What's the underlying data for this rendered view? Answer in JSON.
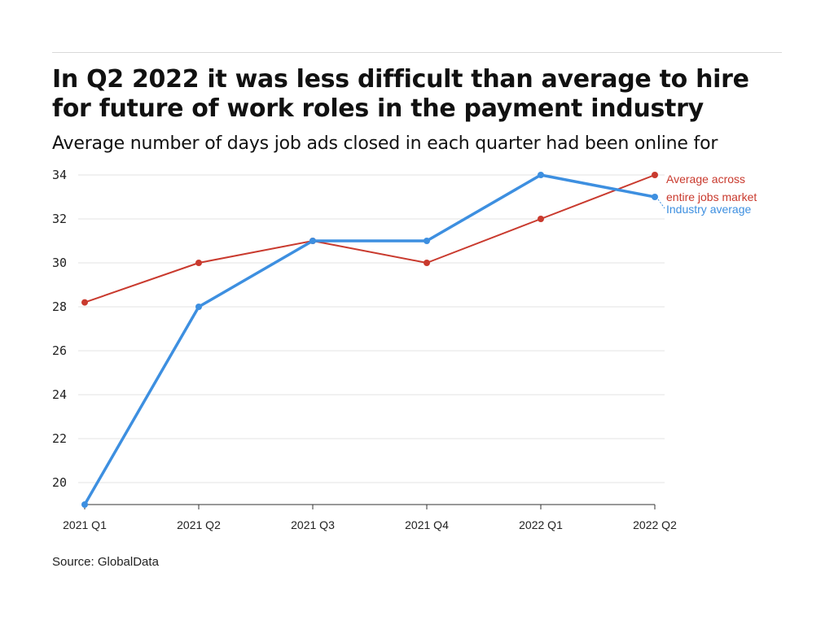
{
  "title": "In Q2 2022 it was less difficult than average to hire for future of work roles in the payment industry",
  "subtitle": "Average number of days job ads closed in each quarter had been online for",
  "source": "Source: GlobalData",
  "colors": {
    "market": "#c93a2e",
    "industry": "#3d8fe0",
    "grid": "#e3e3e3",
    "axis": "#333333"
  },
  "chart_data": {
    "type": "line",
    "categories": [
      "2021 Q1",
      "2021 Q2",
      "2021 Q3",
      "2021 Q4",
      "2022 Q1",
      "2022 Q2"
    ],
    "ylim": [
      19,
      34
    ],
    "yticks": [
      20,
      22,
      24,
      26,
      28,
      30,
      32,
      34
    ],
    "grid": true,
    "series": [
      {
        "name": "Average across entire jobs market",
        "label_lines": [
          "Average across",
          "entire jobs market"
        ],
        "color": "#c93a2e",
        "values": [
          28.2,
          30,
          31,
          30,
          32,
          34
        ]
      },
      {
        "name": "Industry average",
        "label_lines": [
          "Industry average"
        ],
        "color": "#3d8fe0",
        "values": [
          19,
          28,
          31,
          31,
          34,
          33
        ]
      }
    ]
  }
}
